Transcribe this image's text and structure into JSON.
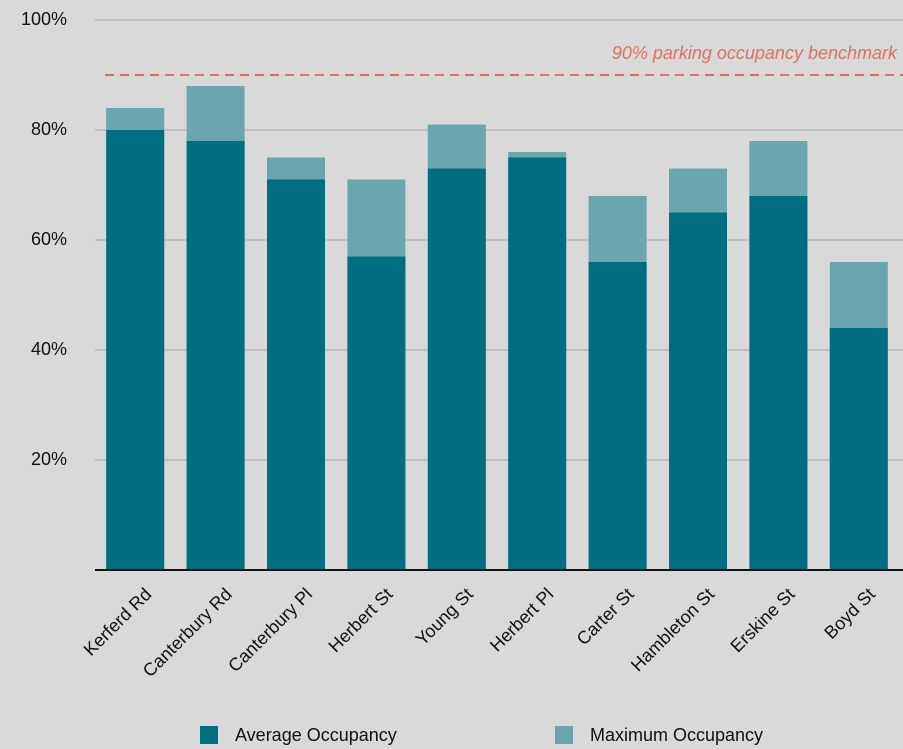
{
  "chart_data": {
    "type": "bar",
    "categories": [
      "Kerferd Rd",
      "Canterbury Rd",
      "Canterbury Pl",
      "Herbert St",
      "Young St",
      "Herbert Pl",
      "Carter St",
      "Hambleton St",
      "Erskine St",
      "Boyd St"
    ],
    "series": [
      {
        "name": "Maximum Occupancy",
        "color": "#6aa5b0",
        "values": [
          84,
          88,
          75,
          71,
          81,
          76,
          68,
          73,
          78,
          56
        ]
      },
      {
        "name": "Average Occupancy",
        "color": "#006e80",
        "values": [
          80,
          78,
          71,
          57,
          73,
          75,
          56,
          65,
          68,
          44
        ]
      }
    ],
    "ylim": [
      0,
      100
    ],
    "yticks": [
      {
        "value": 20,
        "label": "20%"
      },
      {
        "value": 40,
        "label": "40%"
      },
      {
        "value": 60,
        "label": "60%"
      },
      {
        "value": 80,
        "label": "80%"
      },
      {
        "value": 100,
        "label": "100%"
      }
    ],
    "grid": true,
    "benchmark": {
      "value": 90,
      "label": "90% parking occupancy benchmark",
      "color": "#e07060"
    }
  }
}
